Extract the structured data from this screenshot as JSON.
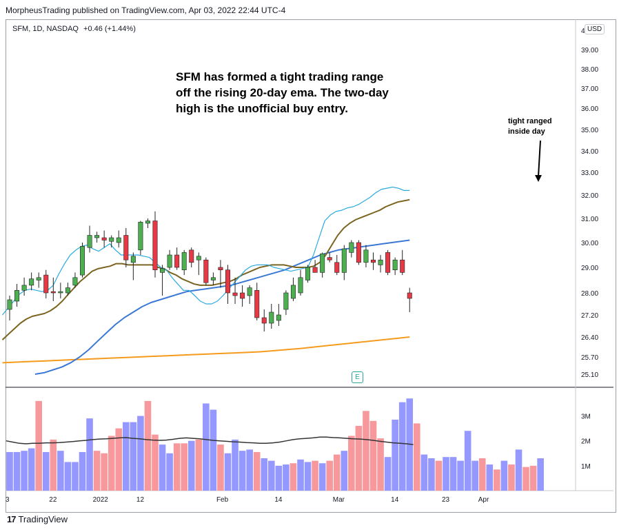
{
  "header": {
    "publisher": "MorpheusTrading published on TradingView.com, Apr 03, 2022 22:44 UTC-4"
  },
  "symbol": {
    "name": "SFM, 1D, NASDAQ",
    "change": "+0.46 (+1.44%)",
    "currency": "USD"
  },
  "annotation": {
    "lines": [
      "SFM has formed a tight trading range",
      "off the rising 20-day ema. The two-day",
      "high is the unofficial buy entry."
    ],
    "callout": [
      "tight ranged",
      "inside day"
    ]
  },
  "earnings_marker": "E",
  "footer": {
    "brand": "TradingView",
    "logo_mark": "17"
  },
  "colors": {
    "up": "#4caf50",
    "down": "#e53946",
    "ema10": "#29a9e0",
    "ema20": "#7a6420",
    "ma50": "#3a78d6",
    "ma200": "#f59a1b",
    "vol_up": "#9598ff",
    "vol_down": "#f7999c",
    "vol_avg": "#333333"
  },
  "chart_data": {
    "type": "candlestick",
    "y_ticks": [
      "39.00",
      "38.00",
      "37.00",
      "36.00",
      "35.00",
      "34.00",
      "33.00",
      "32.00",
      "31.00",
      "30.00",
      "29.00",
      "28.00",
      "27.20",
      "26.40",
      "25.70",
      "25.10"
    ],
    "y_top_label": "4",
    "x_ticks": [
      {
        "label": "3",
        "i": 0
      },
      {
        "label": "22",
        "i": 6
      },
      {
        "label": "2022",
        "i": 12
      },
      {
        "label": "12",
        "i": 18
      },
      {
        "label": "Feb",
        "i": 29
      },
      {
        "label": "14",
        "i": 37
      },
      {
        "label": "Mar",
        "i": 45
      },
      {
        "label": "14",
        "i": 53
      },
      {
        "label": "23",
        "i": 60
      },
      {
        "label": "Apr",
        "i": 65
      }
    ],
    "candles": [
      {
        "o": 27.4,
        "h": 27.9,
        "l": 27.0,
        "c": 27.75
      },
      {
        "o": 27.7,
        "h": 28.35,
        "l": 27.5,
        "c": 28.1
      },
      {
        "o": 28.1,
        "h": 28.6,
        "l": 27.9,
        "c": 28.3
      },
      {
        "o": 28.3,
        "h": 28.8,
        "l": 28.1,
        "c": 28.55
      },
      {
        "o": 28.5,
        "h": 28.8,
        "l": 28.2,
        "c": 28.6
      },
      {
        "o": 28.7,
        "h": 28.9,
        "l": 27.8,
        "c": 28.0
      },
      {
        "o": 28.05,
        "h": 28.6,
        "l": 27.7,
        "c": 28.0
      },
      {
        "o": 28.0,
        "h": 28.4,
        "l": 27.8,
        "c": 28.05
      },
      {
        "o": 28.0,
        "h": 28.4,
        "l": 27.9,
        "c": 28.2
      },
      {
        "o": 28.3,
        "h": 28.8,
        "l": 28.2,
        "c": 28.6
      },
      {
        "o": 28.7,
        "h": 30.0,
        "l": 28.6,
        "c": 29.85
      },
      {
        "o": 29.8,
        "h": 30.7,
        "l": 29.6,
        "c": 30.3
      },
      {
        "o": 30.2,
        "h": 30.45,
        "l": 30.0,
        "c": 30.3
      },
      {
        "o": 30.2,
        "h": 30.5,
        "l": 29.8,
        "c": 30.1
      },
      {
        "o": 30.05,
        "h": 30.3,
        "l": 29.8,
        "c": 30.2
      },
      {
        "o": 30.0,
        "h": 30.5,
        "l": 29.8,
        "c": 30.2
      },
      {
        "o": 30.3,
        "h": 30.6,
        "l": 29.0,
        "c": 29.3
      },
      {
        "o": 29.2,
        "h": 29.6,
        "l": 28.5,
        "c": 29.45
      },
      {
        "o": 29.7,
        "h": 30.9,
        "l": 29.5,
        "c": 30.85
      },
      {
        "o": 30.8,
        "h": 31.0,
        "l": 30.6,
        "c": 30.9
      },
      {
        "o": 30.9,
        "h": 31.3,
        "l": 28.6,
        "c": 28.9
      },
      {
        "o": 28.8,
        "h": 29.1,
        "l": 27.9,
        "c": 28.95
      },
      {
        "o": 29.0,
        "h": 29.7,
        "l": 28.9,
        "c": 29.5
      },
      {
        "o": 29.5,
        "h": 29.8,
        "l": 28.9,
        "c": 29.0
      },
      {
        "o": 28.9,
        "h": 29.7,
        "l": 28.7,
        "c": 29.6
      },
      {
        "o": 29.7,
        "h": 29.8,
        "l": 29.0,
        "c": 29.2
      },
      {
        "o": 29.3,
        "h": 29.6,
        "l": 28.7,
        "c": 29.45
      },
      {
        "o": 29.3,
        "h": 29.4,
        "l": 28.3,
        "c": 28.4
      },
      {
        "o": 28.5,
        "h": 28.8,
        "l": 28.3,
        "c": 28.6
      },
      {
        "o": 29.0,
        "h": 29.3,
        "l": 28.2,
        "c": 28.9
      },
      {
        "o": 28.9,
        "h": 29.1,
        "l": 27.6,
        "c": 28.0
      },
      {
        "o": 28.0,
        "h": 28.6,
        "l": 27.6,
        "c": 27.9
      },
      {
        "o": 28.0,
        "h": 28.3,
        "l": 27.5,
        "c": 27.8
      },
      {
        "o": 27.9,
        "h": 28.3,
        "l": 27.6,
        "c": 28.2
      },
      {
        "o": 28.1,
        "h": 28.4,
        "l": 27.0,
        "c": 27.1
      },
      {
        "o": 27.1,
        "h": 27.4,
        "l": 26.6,
        "c": 26.9
      },
      {
        "o": 26.9,
        "h": 27.6,
        "l": 26.7,
        "c": 27.3
      },
      {
        "o": 27.0,
        "h": 27.6,
        "l": 26.8,
        "c": 27.2
      },
      {
        "o": 27.4,
        "h": 28.1,
        "l": 27.2,
        "c": 28.0
      },
      {
        "o": 27.8,
        "h": 28.6,
        "l": 27.7,
        "c": 28.3
      },
      {
        "o": 28.0,
        "h": 28.9,
        "l": 27.9,
        "c": 28.6
      },
      {
        "o": 28.5,
        "h": 29.1,
        "l": 28.4,
        "c": 29.0
      },
      {
        "o": 29.0,
        "h": 29.3,
        "l": 28.8,
        "c": 28.8
      },
      {
        "o": 28.8,
        "h": 29.6,
        "l": 28.6,
        "c": 29.55
      },
      {
        "o": 29.4,
        "h": 29.6,
        "l": 29.2,
        "c": 29.3
      }
    ],
    "candles_b": [
      {
        "o": 29.2,
        "h": 29.5,
        "l": 28.7,
        "c": 28.8
      },
      {
        "o": 28.8,
        "h": 29.9,
        "l": 28.5,
        "c": 29.75
      },
      {
        "o": 29.6,
        "h": 30.1,
        "l": 29.4,
        "c": 30.0
      },
      {
        "o": 30.0,
        "h": 30.1,
        "l": 29.1,
        "c": 29.2
      },
      {
        "o": 29.2,
        "h": 29.9,
        "l": 29.0,
        "c": 29.7
      },
      {
        "o": 29.3,
        "h": 29.6,
        "l": 28.9,
        "c": 29.2
      },
      {
        "o": 29.1,
        "h": 29.5,
        "l": 28.8,
        "c": 29.3
      },
      {
        "o": 29.6,
        "h": 29.7,
        "l": 28.7,
        "c": 28.8
      },
      {
        "o": 28.9,
        "h": 29.4,
        "l": 28.7,
        "c": 29.3
      },
      {
        "o": 29.3,
        "h": 29.7,
        "l": 28.7,
        "c": 28.8
      },
      {
        "o": 28.0,
        "h": 28.2,
        "l": 27.3,
        "c": 27.8
      }
    ],
    "ema10": [
      27.2,
      27.45,
      27.7,
      27.95,
      28.1,
      28.15,
      28.1,
      28.05,
      28.1,
      28.3,
      28.75,
      29.15,
      29.5,
      29.7,
      29.85,
      29.9,
      29.75,
      29.65,
      29.8,
      29.95,
      29.7,
      29.5,
      29.5,
      29.5,
      29.5,
      29.45,
      29.4,
      29.2,
      29.0,
      28.9,
      28.6,
      28.35,
      28.1,
      28.1,
      27.9,
      27.7,
      27.6,
      27.6,
      27.7,
      27.9,
      28.15,
      28.4,
      28.65,
      28.9,
      29.05,
      29.1,
      29.1,
      29.1,
      29.0,
      28.95,
      28.9,
      28.85,
      28.9,
      28.95,
      29.0,
      29.5,
      30.2,
      30.9,
      31.15,
      31.3,
      31.35,
      31.45,
      31.5,
      31.6,
      31.75,
      31.9,
      32.1,
      32.25,
      32.3,
      32.35,
      32.3,
      32.2,
      32.2
    ],
    "ema20": [
      26.3,
      26.5,
      26.7,
      26.9,
      27.05,
      27.15,
      27.2,
      27.25,
      27.35,
      27.5,
      27.7,
      27.95,
      28.2,
      28.45,
      28.65,
      28.85,
      28.95,
      29.0,
      29.05,
      29.15,
      29.15,
      29.1,
      29.1,
      29.1,
      29.1,
      29.1,
      29.0,
      28.95,
      28.8,
      28.7,
      28.55,
      28.45,
      28.35,
      28.3,
      28.3,
      28.3,
      28.35,
      28.4,
      28.45,
      28.55,
      28.7,
      28.8,
      28.9,
      29.0,
      29.05,
      29.1,
      29.1,
      29.1,
      29.05,
      29.0,
      29.0,
      29.0,
      29.05,
      29.2,
      29.5,
      29.9,
      30.3,
      30.6,
      30.8,
      30.95,
      31.05,
      31.15,
      31.25,
      31.35,
      31.5,
      31.6,
      31.7,
      31.75,
      31.8
    ],
    "ma50": [
      25.1,
      25.15,
      25.25,
      25.35,
      25.5,
      25.7,
      25.95,
      26.25,
      26.55,
      26.85,
      27.1,
      27.3,
      27.5,
      27.65,
      27.75,
      27.85,
      27.95,
      28.05,
      28.1,
      28.15,
      28.2,
      28.25,
      28.3,
      28.4,
      28.5,
      28.6,
      28.7,
      28.8,
      28.9,
      29.05,
      29.2,
      29.35,
      29.5,
      29.6,
      29.7,
      29.75,
      29.8,
      29.85,
      29.9,
      29.95,
      30.0,
      30.05,
      30.1
    ],
    "ma200": [
      25.5,
      25.52,
      25.54,
      25.56,
      25.58,
      25.6,
      25.62,
      25.64,
      25.66,
      25.68,
      25.7,
      25.72,
      25.74,
      25.76,
      25.78,
      25.8,
      25.82,
      25.84,
      25.86,
      25.88,
      25.92,
      25.96,
      26.0,
      26.05,
      26.1,
      26.15,
      26.2,
      26.25,
      26.3,
      26.35,
      26.4
    ],
    "volume": {
      "ticks": [
        "3M",
        "2M",
        "1M"
      ],
      "bars": [
        {
          "v": 1.55,
          "up": true
        },
        {
          "v": 1.55,
          "up": true
        },
        {
          "v": 1.6,
          "up": true
        },
        {
          "v": 1.7,
          "up": true
        },
        {
          "v": 3.6,
          "up": false
        },
        {
          "v": 1.55,
          "up": true
        },
        {
          "v": 2.05,
          "up": false
        },
        {
          "v": 1.6,
          "up": true
        },
        {
          "v": 1.15,
          "up": true
        },
        {
          "v": 1.15,
          "up": true
        },
        {
          "v": 1.55,
          "up": true
        },
        {
          "v": 2.9,
          "up": true
        },
        {
          "v": 1.6,
          "up": false
        },
        {
          "v": 1.5,
          "up": false
        },
        {
          "v": 2.2,
          "up": false
        },
        {
          "v": 2.5,
          "up": false
        },
        {
          "v": 2.75,
          "up": true
        },
        {
          "v": 2.75,
          "up": true
        },
        {
          "v": 3.0,
          "up": true
        },
        {
          "v": 3.6,
          "up": false
        },
        {
          "v": 2.25,
          "up": false
        },
        {
          "v": 1.85,
          "up": true
        },
        {
          "v": 1.5,
          "up": true
        },
        {
          "v": 1.9,
          "up": false
        },
        {
          "v": 1.9,
          "up": false
        },
        {
          "v": 2.0,
          "up": true
        },
        {
          "v": 2.05,
          "up": false
        },
        {
          "v": 3.5,
          "up": true
        },
        {
          "v": 3.25,
          "up": true
        },
        {
          "v": 1.85,
          "up": false
        },
        {
          "v": 1.5,
          "up": true
        },
        {
          "v": 2.05,
          "up": true
        },
        {
          "v": 1.6,
          "up": true
        },
        {
          "v": 1.65,
          "up": true
        },
        {
          "v": 1.55,
          "up": false
        },
        {
          "v": 1.3,
          "up": true
        },
        {
          "v": 1.2,
          "up": true
        },
        {
          "v": 1.0,
          "up": true
        },
        {
          "v": 1.05,
          "up": true
        },
        {
          "v": 1.1,
          "up": false
        },
        {
          "v": 1.25,
          "up": true
        },
        {
          "v": 1.15,
          "up": true
        }
      ],
      "bars_b": [
        {
          "v": 1.2,
          "up": false
        },
        {
          "v": 1.1,
          "up": true
        },
        {
          "v": 1.2,
          "up": false
        },
        {
          "v": 1.45,
          "up": false
        },
        {
          "v": 1.6,
          "up": true
        },
        {
          "v": 2.2,
          "up": false
        },
        {
          "v": 2.6,
          "up": false
        },
        {
          "v": 3.2,
          "up": false
        },
        {
          "v": 2.8,
          "up": false
        },
        {
          "v": 2.1,
          "up": false
        },
        {
          "v": 1.35,
          "up": true
        },
        {
          "v": 2.85,
          "up": true
        },
        {
          "v": 3.55,
          "up": true
        },
        {
          "v": 3.7,
          "up": true
        },
        {
          "v": 2.7,
          "up": false
        },
        {
          "v": 1.45,
          "up": true
        },
        {
          "v": 1.3,
          "up": true
        },
        {
          "v": 1.2,
          "up": false
        },
        {
          "v": 1.35,
          "up": true
        },
        {
          "v": 1.35,
          "up": true
        },
        {
          "v": 1.2,
          "up": true
        },
        {
          "v": 2.4,
          "up": true
        },
        {
          "v": 1.2,
          "up": true
        },
        {
          "v": 1.3,
          "up": false
        },
        {
          "v": 1.05,
          "up": true
        },
        {
          "v": 0.85,
          "up": false
        },
        {
          "v": 1.2,
          "up": true
        },
        {
          "v": 1.05,
          "up": false
        },
        {
          "v": 1.65,
          "up": true
        },
        {
          "v": 0.95,
          "up": false
        },
        {
          "v": 1.0,
          "up": false
        },
        {
          "v": 1.3,
          "up": true
        }
      ],
      "avg": [
        2.0,
        1.95,
        1.9,
        1.88,
        1.9,
        1.9,
        1.92,
        1.92,
        1.93,
        1.95,
        1.97,
        2.0,
        2.02,
        2.05,
        2.07,
        2.08,
        2.1,
        2.12,
        2.13,
        2.1,
        2.08,
        2.05,
        2.03,
        2.02,
        2.03,
        2.06,
        2.1,
        2.12,
        2.1,
        2.08,
        2.05,
        2.02,
        2.0,
        1.98,
        1.96,
        1.95,
        1.93,
        1.92,
        1.9,
        1.9,
        1.92,
        1.95,
        2.0,
        2.05,
        2.08,
        2.1,
        2.12,
        2.15,
        2.15,
        2.13,
        2.12,
        2.1,
        2.08,
        2.07,
        2.05,
        2.02,
        1.98,
        1.95,
        1.92,
        1.9,
        1.88,
        1.85
      ]
    }
  }
}
